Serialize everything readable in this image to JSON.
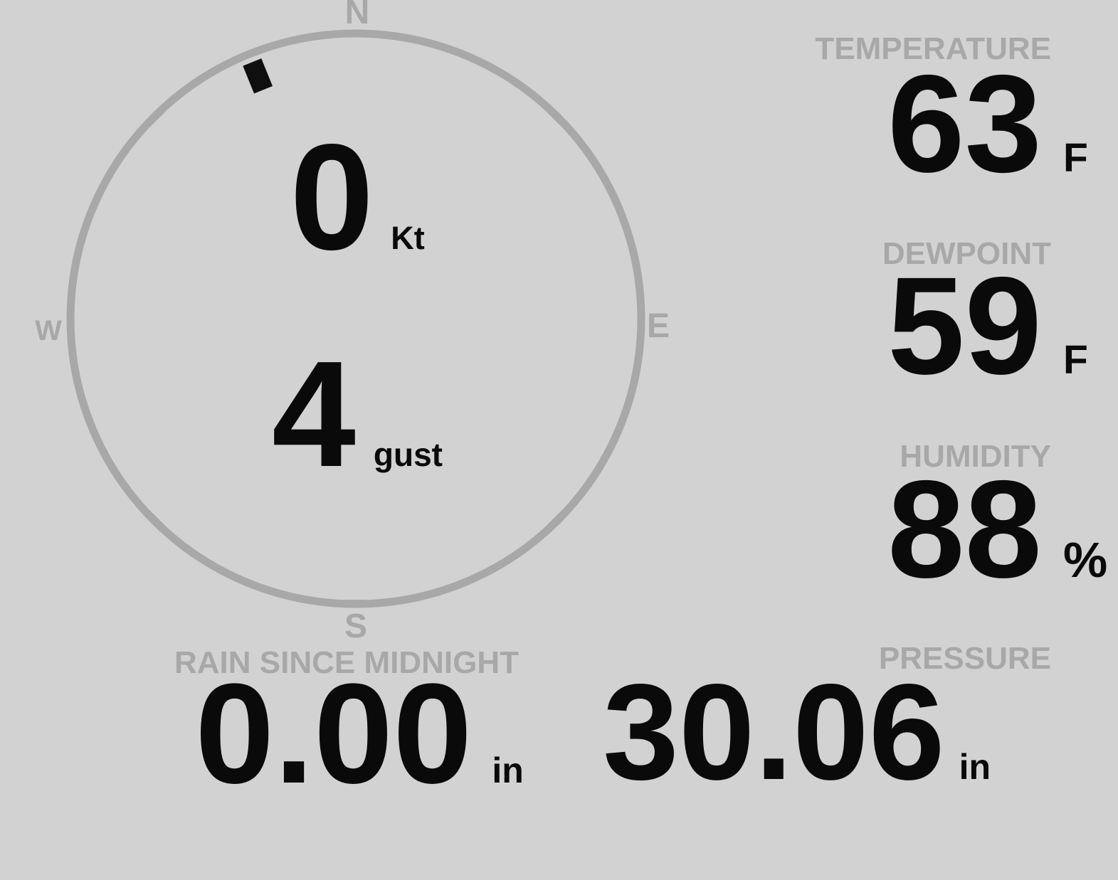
{
  "colors": {
    "background": "#d2d2d2",
    "muted_gray": "#a8a8a8",
    "value_black": "#0a0a0a"
  },
  "compass": {
    "cardinals": {
      "north": "N",
      "east": "E",
      "south": "S",
      "west": "W"
    },
    "wind_speed": {
      "value": "0",
      "unit": "Kt"
    },
    "wind_gust": {
      "value": "4",
      "unit": "gust"
    },
    "wind_direction_deg": 338
  },
  "metrics": {
    "temperature": {
      "label": "TEMPERATURE",
      "value": "63",
      "unit": "F"
    },
    "dewpoint": {
      "label": "DEWPOINT",
      "value": "59",
      "unit": "F"
    },
    "humidity": {
      "label": "HUMIDITY",
      "value": "88",
      "unit": "%"
    },
    "rain": {
      "label": "RAIN SINCE MIDNIGHT",
      "value": "0.00",
      "unit": "in"
    },
    "pressure": {
      "label": "PRESSURE",
      "value": "30.06",
      "unit": "in"
    }
  }
}
